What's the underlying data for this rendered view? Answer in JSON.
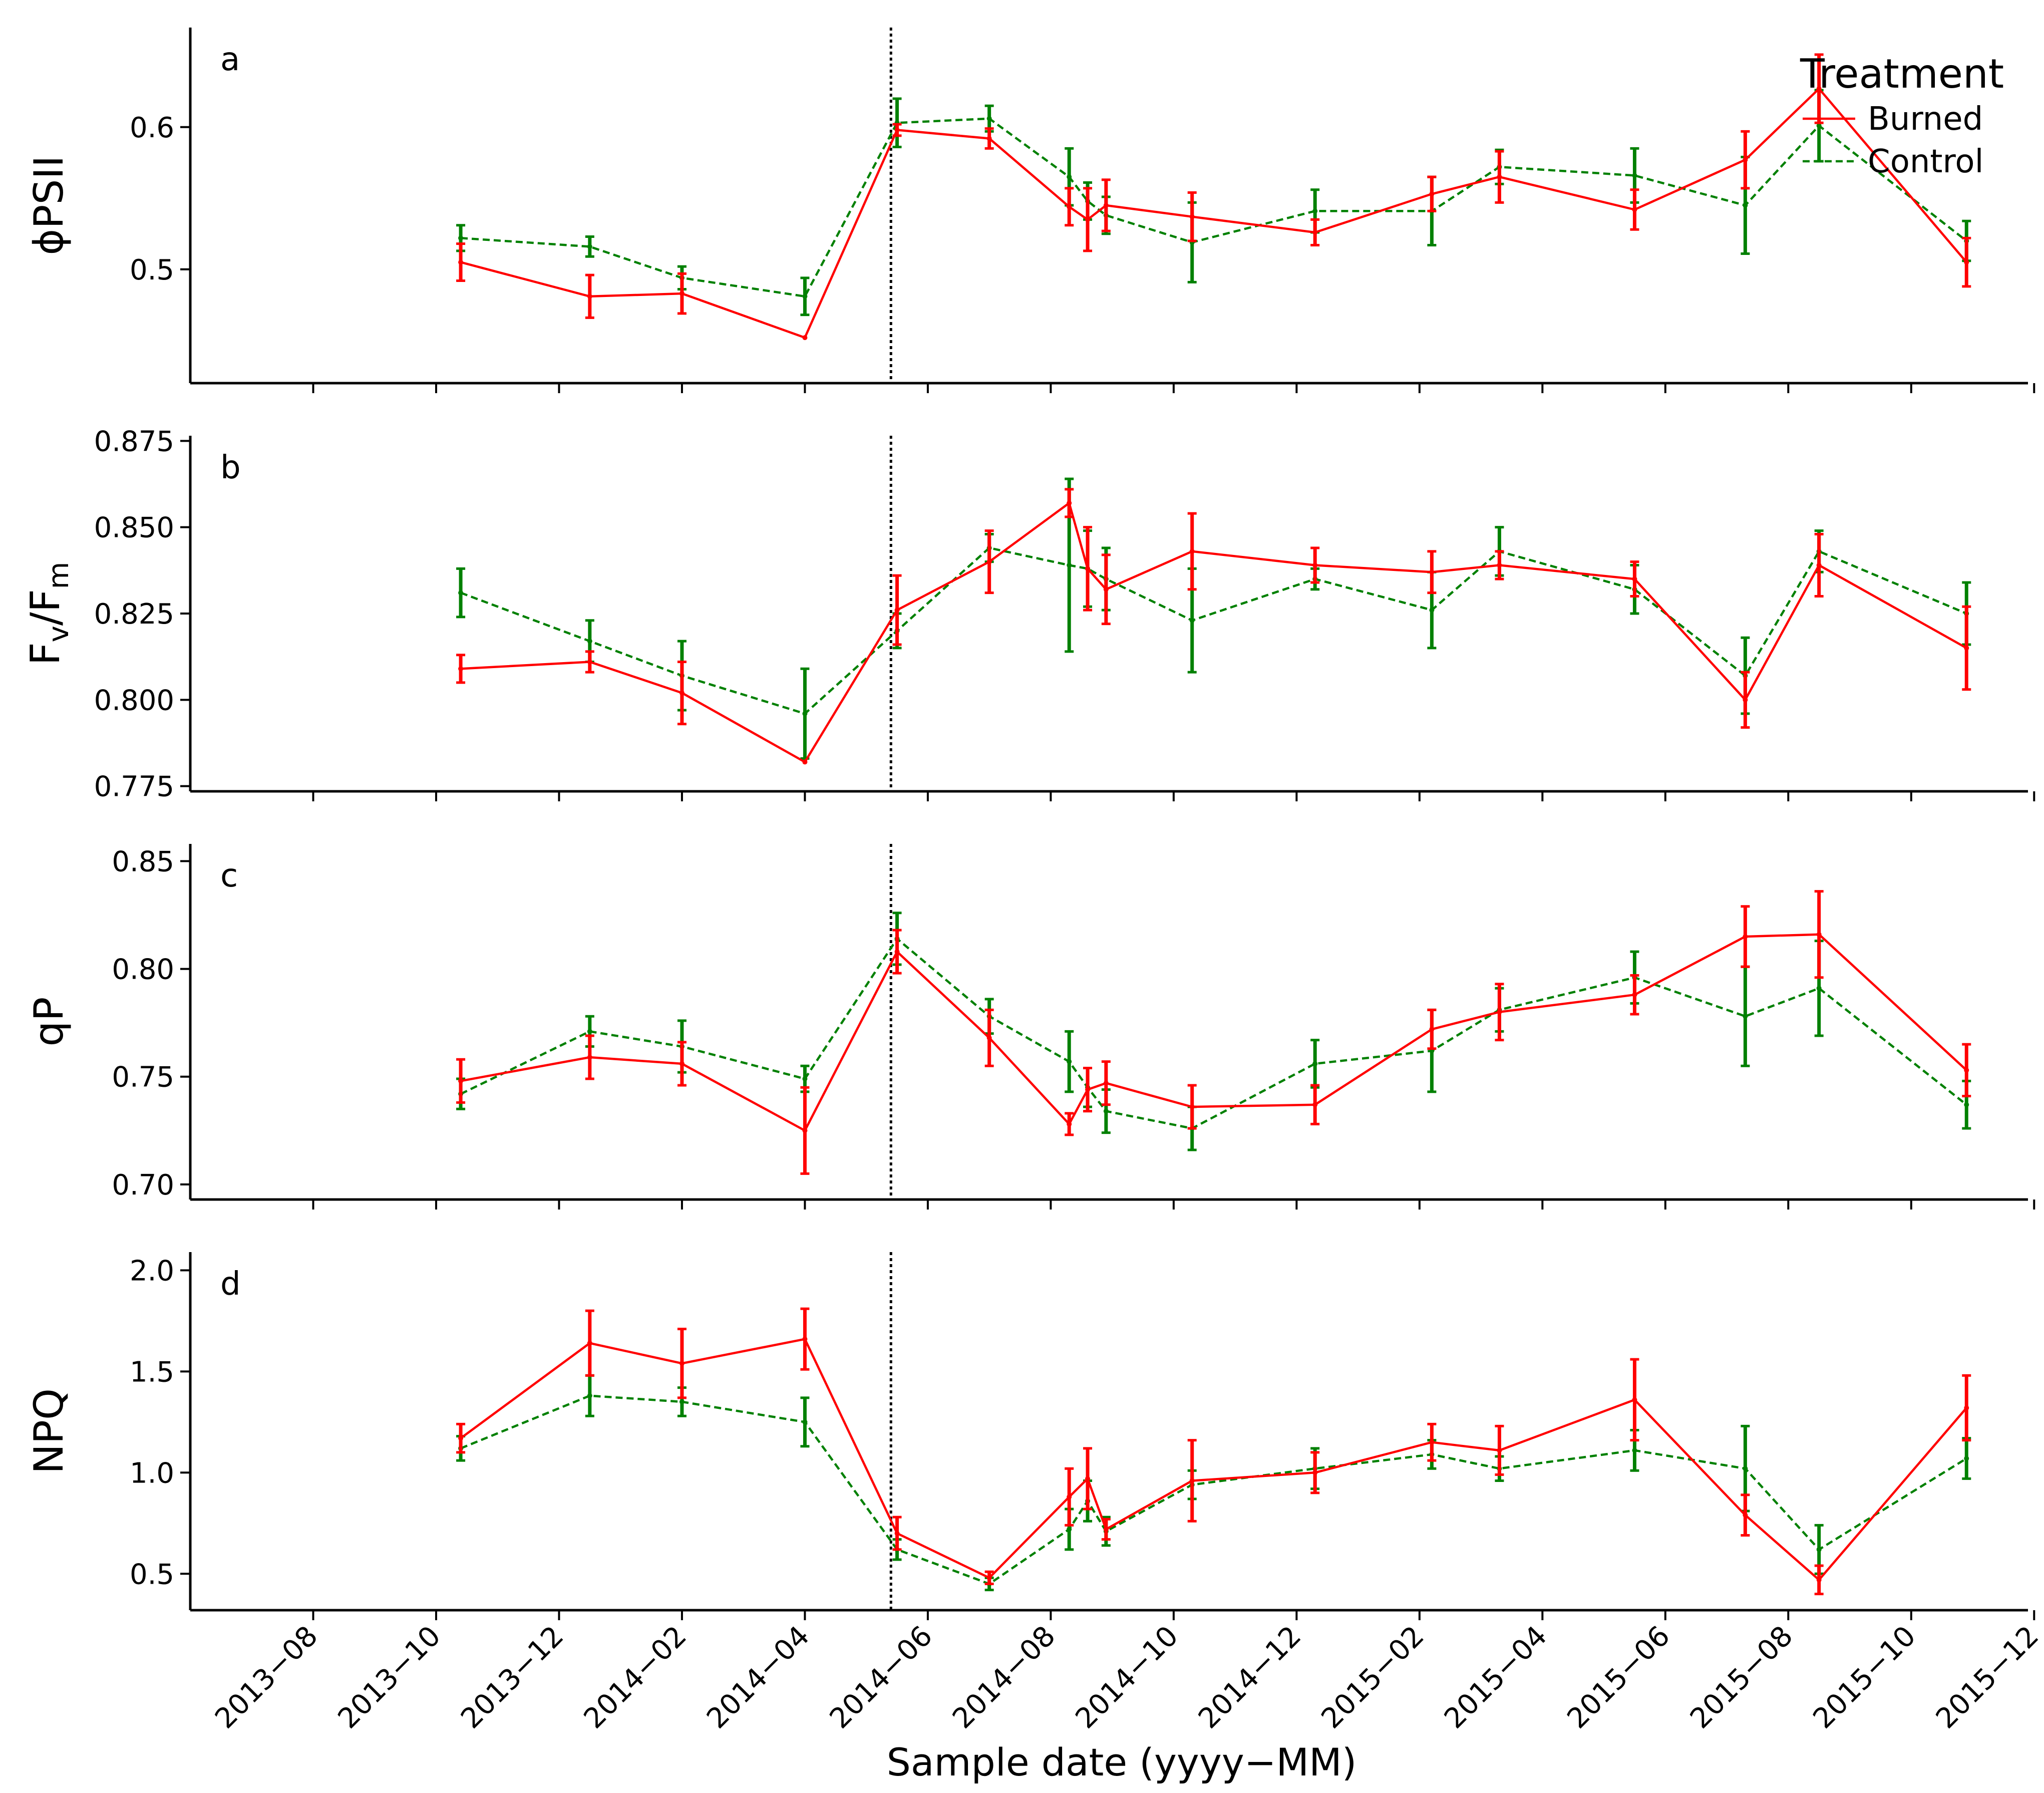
{
  "figure": {
    "xlabel": "Sample date (yyyy−MM)",
    "x_ticks": [
      "2013−08",
      "2013−10",
      "2013−12",
      "2014−02",
      "2014−04",
      "2014−06",
      "2014−08",
      "2014−10",
      "2014−12",
      "2015−02",
      "2015−04",
      "2015−06",
      "2015−08",
      "2015−10",
      "2015−12"
    ],
    "burn_date_month": 11.4,
    "legend": {
      "title": "Treatment",
      "entries": [
        {
          "label": "Burned",
          "color": "#ff0000",
          "dash": "solid"
        },
        {
          "label": "Control",
          "color": "#008000",
          "dash": "dashed"
        }
      ]
    }
  },
  "chart_data": [
    {
      "type": "line",
      "panel": "a",
      "ylabel": "ϕPSII",
      "ylim": [
        0.42,
        0.67
      ],
      "yticks": [
        0.5,
        0.6
      ],
      "yticklabels": [
        "0.5",
        "0.6"
      ],
      "series": [
        {
          "name": "Burned",
          "x": [
            4.4,
            6.5,
            8,
            10,
            11.5,
            13,
            14.3,
            14.6,
            14.9,
            16.3,
            18.3,
            20.2,
            21.3,
            23.5,
            25.3,
            26.5,
            28.9
          ],
          "y": [
            0.505,
            0.481,
            0.483,
            0.452,
            0.598,
            0.592,
            0.544,
            0.535,
            0.545,
            0.537,
            0.526,
            0.553,
            0.565,
            0.542,
            0.577,
            0.627,
            0.505
          ],
          "err": [
            0.013,
            0.015,
            0.014,
            0.0,
            0.004,
            0.007,
            0.013,
            0.022,
            0.018,
            0.017,
            0.009,
            0.012,
            0.018,
            0.014,
            0.02,
            0.024,
            0.017
          ]
        },
        {
          "name": "Control",
          "x": [
            4.4,
            6.5,
            8,
            10,
            11.5,
            13,
            14.3,
            14.6,
            14.9,
            16.3,
            18.3,
            20.2,
            21.3,
            23.5,
            25.3,
            26.5,
            28.9
          ],
          "y": [
            0.522,
            0.516,
            0.494,
            0.481,
            0.603,
            0.606,
            0.565,
            0.548,
            0.538,
            0.519,
            0.541,
            0.541,
            0.572,
            0.566,
            0.545,
            0.601,
            0.52
          ],
          "err": [
            0.009,
            0.007,
            0.008,
            0.013,
            0.017,
            0.009,
            0.02,
            0.013,
            0.013,
            0.028,
            0.015,
            0.024,
            0.012,
            0.019,
            0.034,
            0.025,
            0.014
          ]
        }
      ]
    },
    {
      "type": "line",
      "panel": "b",
      "ylabel": "Fv/Fm",
      "ylim": [
        0.7735,
        0.8765
      ],
      "yticks": [
        0.775,
        0.8,
        0.825,
        0.85,
        0.875
      ],
      "yticklabels": [
        "0.775",
        "0.800",
        "0.825",
        "0.850",
        "0.875"
      ],
      "series": [
        {
          "name": "Burned",
          "x": [
            4.4,
            6.5,
            8,
            10,
            11.5,
            13,
            14.3,
            14.6,
            14.9,
            16.3,
            18.3,
            20.2,
            21.3,
            23.5,
            25.3,
            26.5,
            28.9
          ],
          "y": [
            0.809,
            0.811,
            0.802,
            0.782,
            0.826,
            0.84,
            0.857,
            0.838,
            0.832,
            0.843,
            0.839,
            0.837,
            0.839,
            0.835,
            0.8,
            0.839,
            0.815
          ],
          "err": [
            0.004,
            0.003,
            0.009,
            0.0,
            0.01,
            0.009,
            0.004,
            0.012,
            0.01,
            0.011,
            0.005,
            0.006,
            0.004,
            0.005,
            0.008,
            0.009,
            0.012
          ]
        },
        {
          "name": "Control",
          "x": [
            4.4,
            6.5,
            8,
            10,
            11.5,
            13,
            14.3,
            14.6,
            14.9,
            16.3,
            18.3,
            20.2,
            21.3,
            23.5,
            25.3,
            26.5,
            28.9
          ],
          "y": [
            0.831,
            0.817,
            0.807,
            0.796,
            0.82,
            0.844,
            0.839,
            0.838,
            0.835,
            0.823,
            0.835,
            0.826,
            0.843,
            0.832,
            0.807,
            0.843,
            0.825
          ],
          "err": [
            0.007,
            0.006,
            0.01,
            0.013,
            0.005,
            0.004,
            0.025,
            0.011,
            0.009,
            0.015,
            0.003,
            0.011,
            0.007,
            0.007,
            0.011,
            0.006,
            0.009
          ]
        }
      ]
    },
    {
      "type": "line",
      "panel": "c",
      "ylabel": "qP",
      "ylim": [
        0.693,
        0.858
      ],
      "yticks": [
        0.7,
        0.75,
        0.8,
        0.85
      ],
      "yticklabels": [
        "0.70",
        "0.75",
        "0.80",
        "0.85"
      ],
      "series": [
        {
          "name": "Burned",
          "x": [
            4.4,
            6.5,
            8,
            10,
            11.5,
            13,
            14.3,
            14.6,
            14.9,
            16.3,
            18.3,
            20.2,
            21.3,
            23.5,
            25.3,
            26.5,
            28.9
          ],
          "y": [
            0.748,
            0.759,
            0.756,
            0.725,
            0.808,
            0.768,
            0.728,
            0.744,
            0.747,
            0.736,
            0.737,
            0.772,
            0.78,
            0.788,
            0.815,
            0.816,
            0.753
          ],
          "err": [
            0.01,
            0.01,
            0.01,
            0.02,
            0.01,
            0.013,
            0.005,
            0.01,
            0.01,
            0.01,
            0.009,
            0.009,
            0.013,
            0.009,
            0.014,
            0.02,
            0.012
          ]
        },
        {
          "name": "Control",
          "x": [
            4.4,
            6.5,
            8,
            10,
            11.5,
            13,
            14.3,
            14.6,
            14.9,
            16.3,
            18.3,
            20.2,
            21.3,
            23.5,
            25.3,
            26.5,
            28.9
          ],
          "y": [
            0.742,
            0.771,
            0.764,
            0.749,
            0.814,
            0.778,
            0.757,
            0.745,
            0.734,
            0.726,
            0.756,
            0.762,
            0.781,
            0.796,
            0.778,
            0.791,
            0.737
          ],
          "err": [
            0.007,
            0.007,
            0.012,
            0.006,
            0.012,
            0.008,
            0.014,
            0.009,
            0.01,
            0.01,
            0.011,
            0.019,
            0.01,
            0.012,
            0.023,
            0.022,
            0.011
          ]
        }
      ]
    },
    {
      "type": "line",
      "panel": "d",
      "ylabel": "NPQ",
      "ylim": [
        0.32,
        2.09
      ],
      "yticks": [
        0.5,
        1.0,
        1.5,
        2.0
      ],
      "yticklabels": [
        "0.5",
        "1.0",
        "1.5",
        "2.0"
      ],
      "series": [
        {
          "name": "Burned",
          "x": [
            4.4,
            6.5,
            8,
            10,
            11.5,
            13,
            14.3,
            14.6,
            14.9,
            16.3,
            18.3,
            20.2,
            21.3,
            23.5,
            25.3,
            26.5,
            28.9
          ],
          "y": [
            1.17,
            1.64,
            1.54,
            1.66,
            0.7,
            0.48,
            0.88,
            0.97,
            0.72,
            0.96,
            1.0,
            1.15,
            1.11,
            1.36,
            0.79,
            0.47,
            1.32
          ],
          "err": [
            0.07,
            0.16,
            0.17,
            0.15,
            0.08,
            0.03,
            0.14,
            0.15,
            0.05,
            0.2,
            0.1,
            0.09,
            0.12,
            0.2,
            0.1,
            0.07,
            0.16
          ]
        },
        {
          "name": "Control",
          "x": [
            4.4,
            6.5,
            8,
            10,
            11.5,
            13,
            14.3,
            14.6,
            14.9,
            16.3,
            18.3,
            20.2,
            21.3,
            23.5,
            25.3,
            26.5,
            28.9
          ],
          "y": [
            1.12,
            1.38,
            1.35,
            1.25,
            0.62,
            0.45,
            0.72,
            0.86,
            0.71,
            0.94,
            1.02,
            1.09,
            1.02,
            1.11,
            1.02,
            0.62,
            1.07
          ],
          "err": [
            0.06,
            0.1,
            0.07,
            0.12,
            0.05,
            0.03,
            0.1,
            0.1,
            0.07,
            0.07,
            0.1,
            0.07,
            0.06,
            0.1,
            0.21,
            0.12,
            0.1
          ]
        }
      ]
    }
  ]
}
